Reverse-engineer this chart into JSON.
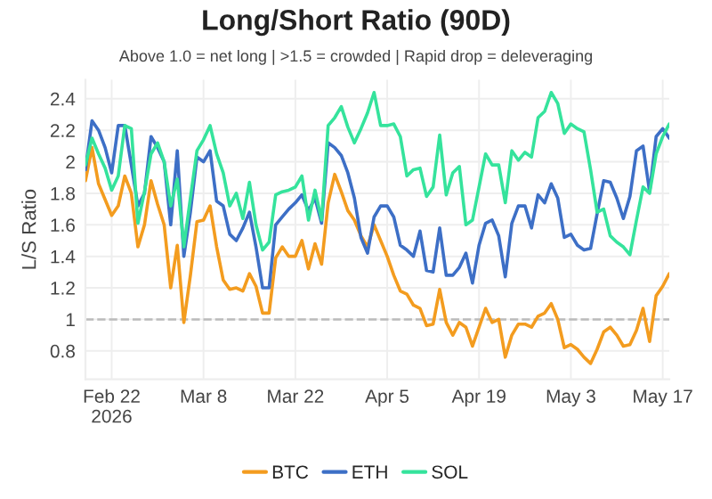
{
  "chart_data": {
    "type": "line",
    "title": "Long/Short Ratio (90D)",
    "subtitle": "Above 1.0 = net long | >1.5 = crowded | Rapid drop = deleveraging",
    "ylabel": "L/S Ratio",
    "x": [
      "2026-02-18",
      "2026-02-19",
      "2026-02-20",
      "2026-02-21",
      "2026-02-22",
      "2026-02-23",
      "2026-02-24",
      "2026-02-25",
      "2026-02-26",
      "2026-02-27",
      "2026-02-28",
      "2026-03-01",
      "2026-03-02",
      "2026-03-03",
      "2026-03-04",
      "2026-03-05",
      "2026-03-06",
      "2026-03-07",
      "2026-03-08",
      "2026-03-09",
      "2026-03-10",
      "2026-03-11",
      "2026-03-12",
      "2026-03-13",
      "2026-03-14",
      "2026-03-15",
      "2026-03-16",
      "2026-03-17",
      "2026-03-18",
      "2026-03-19",
      "2026-03-20",
      "2026-03-21",
      "2026-03-22",
      "2026-03-23",
      "2026-03-24",
      "2026-03-25",
      "2026-03-26",
      "2026-03-27",
      "2026-03-28",
      "2026-03-29",
      "2026-03-30",
      "2026-03-31",
      "2026-04-01",
      "2026-04-02",
      "2026-04-03",
      "2026-04-04",
      "2026-04-05",
      "2026-04-06",
      "2026-04-07",
      "2026-04-08",
      "2026-04-09",
      "2026-04-10",
      "2026-04-11",
      "2026-04-12",
      "2026-04-13",
      "2026-04-14",
      "2026-04-15",
      "2026-04-16",
      "2026-04-17",
      "2026-04-18",
      "2026-04-19",
      "2026-04-20",
      "2026-04-21",
      "2026-04-22",
      "2026-04-23",
      "2026-04-24",
      "2026-04-25",
      "2026-04-26",
      "2026-04-27",
      "2026-04-28",
      "2026-04-29",
      "2026-04-30",
      "2026-05-01",
      "2026-05-02",
      "2026-05-03",
      "2026-05-04",
      "2026-05-05",
      "2026-05-06",
      "2026-05-07",
      "2026-05-08",
      "2026-05-09",
      "2026-05-10",
      "2026-05-11",
      "2026-05-12",
      "2026-05-13",
      "2026-05-14",
      "2026-05-15",
      "2026-05-16",
      "2026-05-17",
      "2026-05-18"
    ],
    "series": [
      {
        "name": "BTC",
        "color": "#f39c1f",
        "values": [
          1.88,
          2.09,
          1.86,
          1.76,
          1.66,
          1.72,
          1.91,
          1.8,
          1.46,
          1.6,
          1.88,
          1.73,
          1.6,
          1.2,
          1.47,
          0.98,
          1.28,
          1.62,
          1.63,
          1.72,
          1.46,
          1.25,
          1.19,
          1.2,
          1.18,
          1.29,
          1.21,
          1.04,
          1.04,
          1.39,
          1.46,
          1.4,
          1.4,
          1.5,
          1.32,
          1.48,
          1.35,
          1.74,
          1.92,
          1.81,
          1.69,
          1.63,
          1.53,
          1.46,
          1.6,
          1.5,
          1.4,
          1.28,
          1.18,
          1.16,
          1.09,
          1.07,
          0.96,
          0.97,
          1.19,
          0.98,
          0.9,
          0.98,
          0.95,
          0.83,
          0.95,
          1.07,
          0.98,
          1.0,
          0.76,
          0.9,
          0.97,
          0.97,
          0.95,
          1.02,
          1.04,
          1.1,
          1.0,
          0.82,
          0.84,
          0.81,
          0.76,
          0.72,
          0.81,
          0.92,
          0.95,
          0.9,
          0.83,
          0.84,
          0.93,
          1.07,
          0.86,
          1.15,
          1.21,
          1.29
        ]
      },
      {
        "name": "ETH",
        "color": "#3d6fc6",
        "values": [
          1.95,
          2.26,
          2.2,
          2.09,
          1.93,
          2.23,
          2.23,
          1.98,
          1.72,
          1.8,
          2.16,
          2.09,
          2.0,
          1.6,
          2.07,
          1.4,
          1.68,
          2.03,
          2.0,
          2.07,
          1.75,
          1.72,
          1.54,
          1.5,
          1.58,
          1.68,
          1.46,
          1.2,
          1.2,
          1.6,
          1.65,
          1.7,
          1.74,
          1.79,
          1.69,
          1.77,
          1.61,
          2.12,
          2.09,
          2.04,
          1.93,
          1.77,
          1.52,
          1.42,
          1.65,
          1.72,
          1.72,
          1.65,
          1.47,
          1.44,
          1.4,
          1.56,
          1.31,
          1.3,
          1.58,
          1.28,
          1.28,
          1.33,
          1.42,
          1.23,
          1.47,
          1.61,
          1.63,
          1.53,
          1.27,
          1.61,
          1.72,
          1.72,
          1.58,
          1.79,
          1.74,
          1.86,
          1.77,
          1.52,
          1.54,
          1.47,
          1.44,
          1.45,
          1.67,
          1.88,
          1.87,
          1.77,
          1.64,
          1.78,
          2.07,
          2.1,
          1.81,
          2.16,
          2.21,
          2.15
        ]
      },
      {
        "name": "SOL",
        "color": "#35e39c",
        "values": [
          1.98,
          2.15,
          2.05,
          1.96,
          1.82,
          1.91,
          2.23,
          2.21,
          1.61,
          1.81,
          2.05,
          2.12,
          2.0,
          1.72,
          1.89,
          1.46,
          1.77,
          2.07,
          2.14,
          2.23,
          2.05,
          1.93,
          1.72,
          1.8,
          1.64,
          1.87,
          1.6,
          1.44,
          1.49,
          1.79,
          1.81,
          1.82,
          1.84,
          1.91,
          1.63,
          1.82,
          1.63,
          2.23,
          2.28,
          2.35,
          2.22,
          2.12,
          2.21,
          2.31,
          2.44,
          2.23,
          2.23,
          2.24,
          2.16,
          1.91,
          1.95,
          1.96,
          1.78,
          1.84,
          2.17,
          1.79,
          1.93,
          1.97,
          1.6,
          1.63,
          1.84,
          2.05,
          1.98,
          1.98,
          1.74,
          2.07,
          2.01,
          2.06,
          2.03,
          2.28,
          2.32,
          2.44,
          2.37,
          2.18,
          2.24,
          2.21,
          2.19,
          1.95,
          1.68,
          1.7,
          1.53,
          1.49,
          1.46,
          1.41,
          1.63,
          1.84,
          1.8,
          2.05,
          2.16,
          2.24
        ]
      }
    ],
    "xlim": [
      "2026-02-18",
      "2026-05-18"
    ],
    "xticks": [
      {
        "value": "2026-02-22",
        "label": "Feb 22\n2026"
      },
      {
        "value": "2026-03-08",
        "label": "Mar 8"
      },
      {
        "value": "2026-03-22",
        "label": "Mar 22"
      },
      {
        "value": "2026-04-05",
        "label": "Apr 5"
      },
      {
        "value": "2026-04-19",
        "label": "Apr 19"
      },
      {
        "value": "2026-05-03",
        "label": "May 3"
      },
      {
        "value": "2026-05-17",
        "label": "May 17"
      }
    ],
    "ylim": [
      0.62,
      2.52
    ],
    "yticks": [
      0.8,
      1,
      1.2,
      1.4,
      1.6,
      1.8,
      2,
      2.2,
      2.4
    ],
    "ref_lines": [
      {
        "axis": "y",
        "value": 1,
        "color": "#bbbbbb",
        "line_style": "dashed"
      }
    ],
    "grid": true,
    "legend": "bottom",
    "marker": "none",
    "line_style": "solid"
  }
}
